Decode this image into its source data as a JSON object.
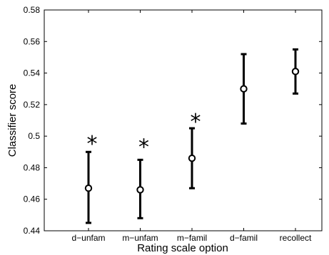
{
  "chart_data": {
    "type": "scatter",
    "title": "",
    "xlabel": "Rating scale option",
    "ylabel": "Classifier score",
    "ylim": [
      0.44,
      0.58
    ],
    "y_ticks": [
      "0.44",
      "0.46",
      "0.48",
      "0.5",
      "0.52",
      "0.54",
      "0.56",
      "0.58"
    ],
    "grid": false,
    "categories": [
      "d−unfam",
      "m−unfam",
      "m−famil",
      "d−famil",
      "recollect"
    ],
    "series": [
      {
        "values": [
          0.467,
          0.466,
          0.486,
          0.53,
          0.541
        ],
        "error_low": [
          0.445,
          0.448,
          0.467,
          0.508,
          0.527
        ],
        "error_high": [
          0.49,
          0.485,
          0.505,
          0.552,
          0.555
        ]
      }
    ],
    "annotations": [
      {
        "category": "d−unfam",
        "text": "*",
        "y": 0.5
      },
      {
        "category": "m−unfam",
        "text": "*",
        "y": 0.498
      },
      {
        "category": "m−famil",
        "text": "*",
        "y": 0.514
      }
    ]
  }
}
